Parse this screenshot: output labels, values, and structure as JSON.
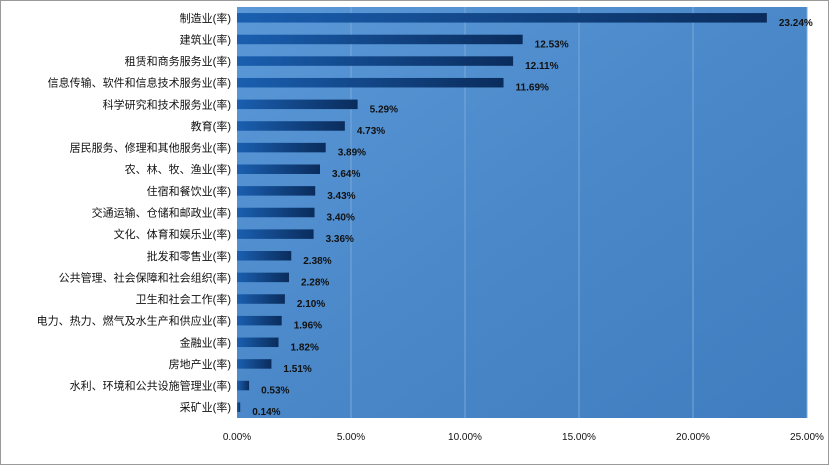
{
  "chart_data": {
    "type": "bar",
    "orientation": "horizontal",
    "categories": [
      "制造业(率)",
      "建筑业(率)",
      "租赁和商务服务业(率)",
      "信息传输、软件和信息技术服务业(率)",
      "科学研究和技术服务业(率)",
      "教育(率)",
      "居民服务、修理和其他服务业(率)",
      "农、林、牧、渔业(率)",
      "住宿和餐饮业(率)",
      "交通运输、仓储和邮政业(率)",
      "文化、体育和娱乐业(率)",
      "批发和零售业(率)",
      "公共管理、社会保障和社会组织(率)",
      "卫生和社会工作(率)",
      "电力、热力、燃气及水生产和供应业(率)",
      "金融业(率)",
      "房地产业(率)",
      "水利、环境和公共设施管理业(率)",
      "采矿业(率)"
    ],
    "values": [
      23.24,
      12.53,
      12.11,
      11.69,
      5.29,
      4.73,
      3.89,
      3.64,
      3.43,
      3.4,
      3.36,
      2.38,
      2.28,
      2.1,
      1.96,
      1.82,
      1.51,
      0.53,
      0.14
    ],
    "value_labels": [
      "23.24%",
      "12.53%",
      "12.11%",
      "11.69%",
      "5.29%",
      "4.73%",
      "3.89%",
      "3.64%",
      "3.43%",
      "3.40%",
      "3.36%",
      "2.38%",
      "2.28%",
      "2.10%",
      "1.96%",
      "1.82%",
      "1.51%",
      "0.53%",
      "0.14%"
    ],
    "x_ticks": [
      0,
      5,
      10,
      15,
      20,
      25
    ],
    "x_tick_labels": [
      "0.00%",
      "5.00%",
      "10.00%",
      "15.00%",
      "20.00%",
      "25.00%"
    ],
    "xlim": [
      0,
      25
    ],
    "title": "",
    "xlabel": "",
    "ylabel": "",
    "grid": true,
    "legend": "none",
    "colors": {
      "plot_background": "#4f8fd0",
      "bar_start": "#1a5fb0",
      "bar_end": "#0a2c5c",
      "gridline": "#7aa9d9"
    }
  }
}
